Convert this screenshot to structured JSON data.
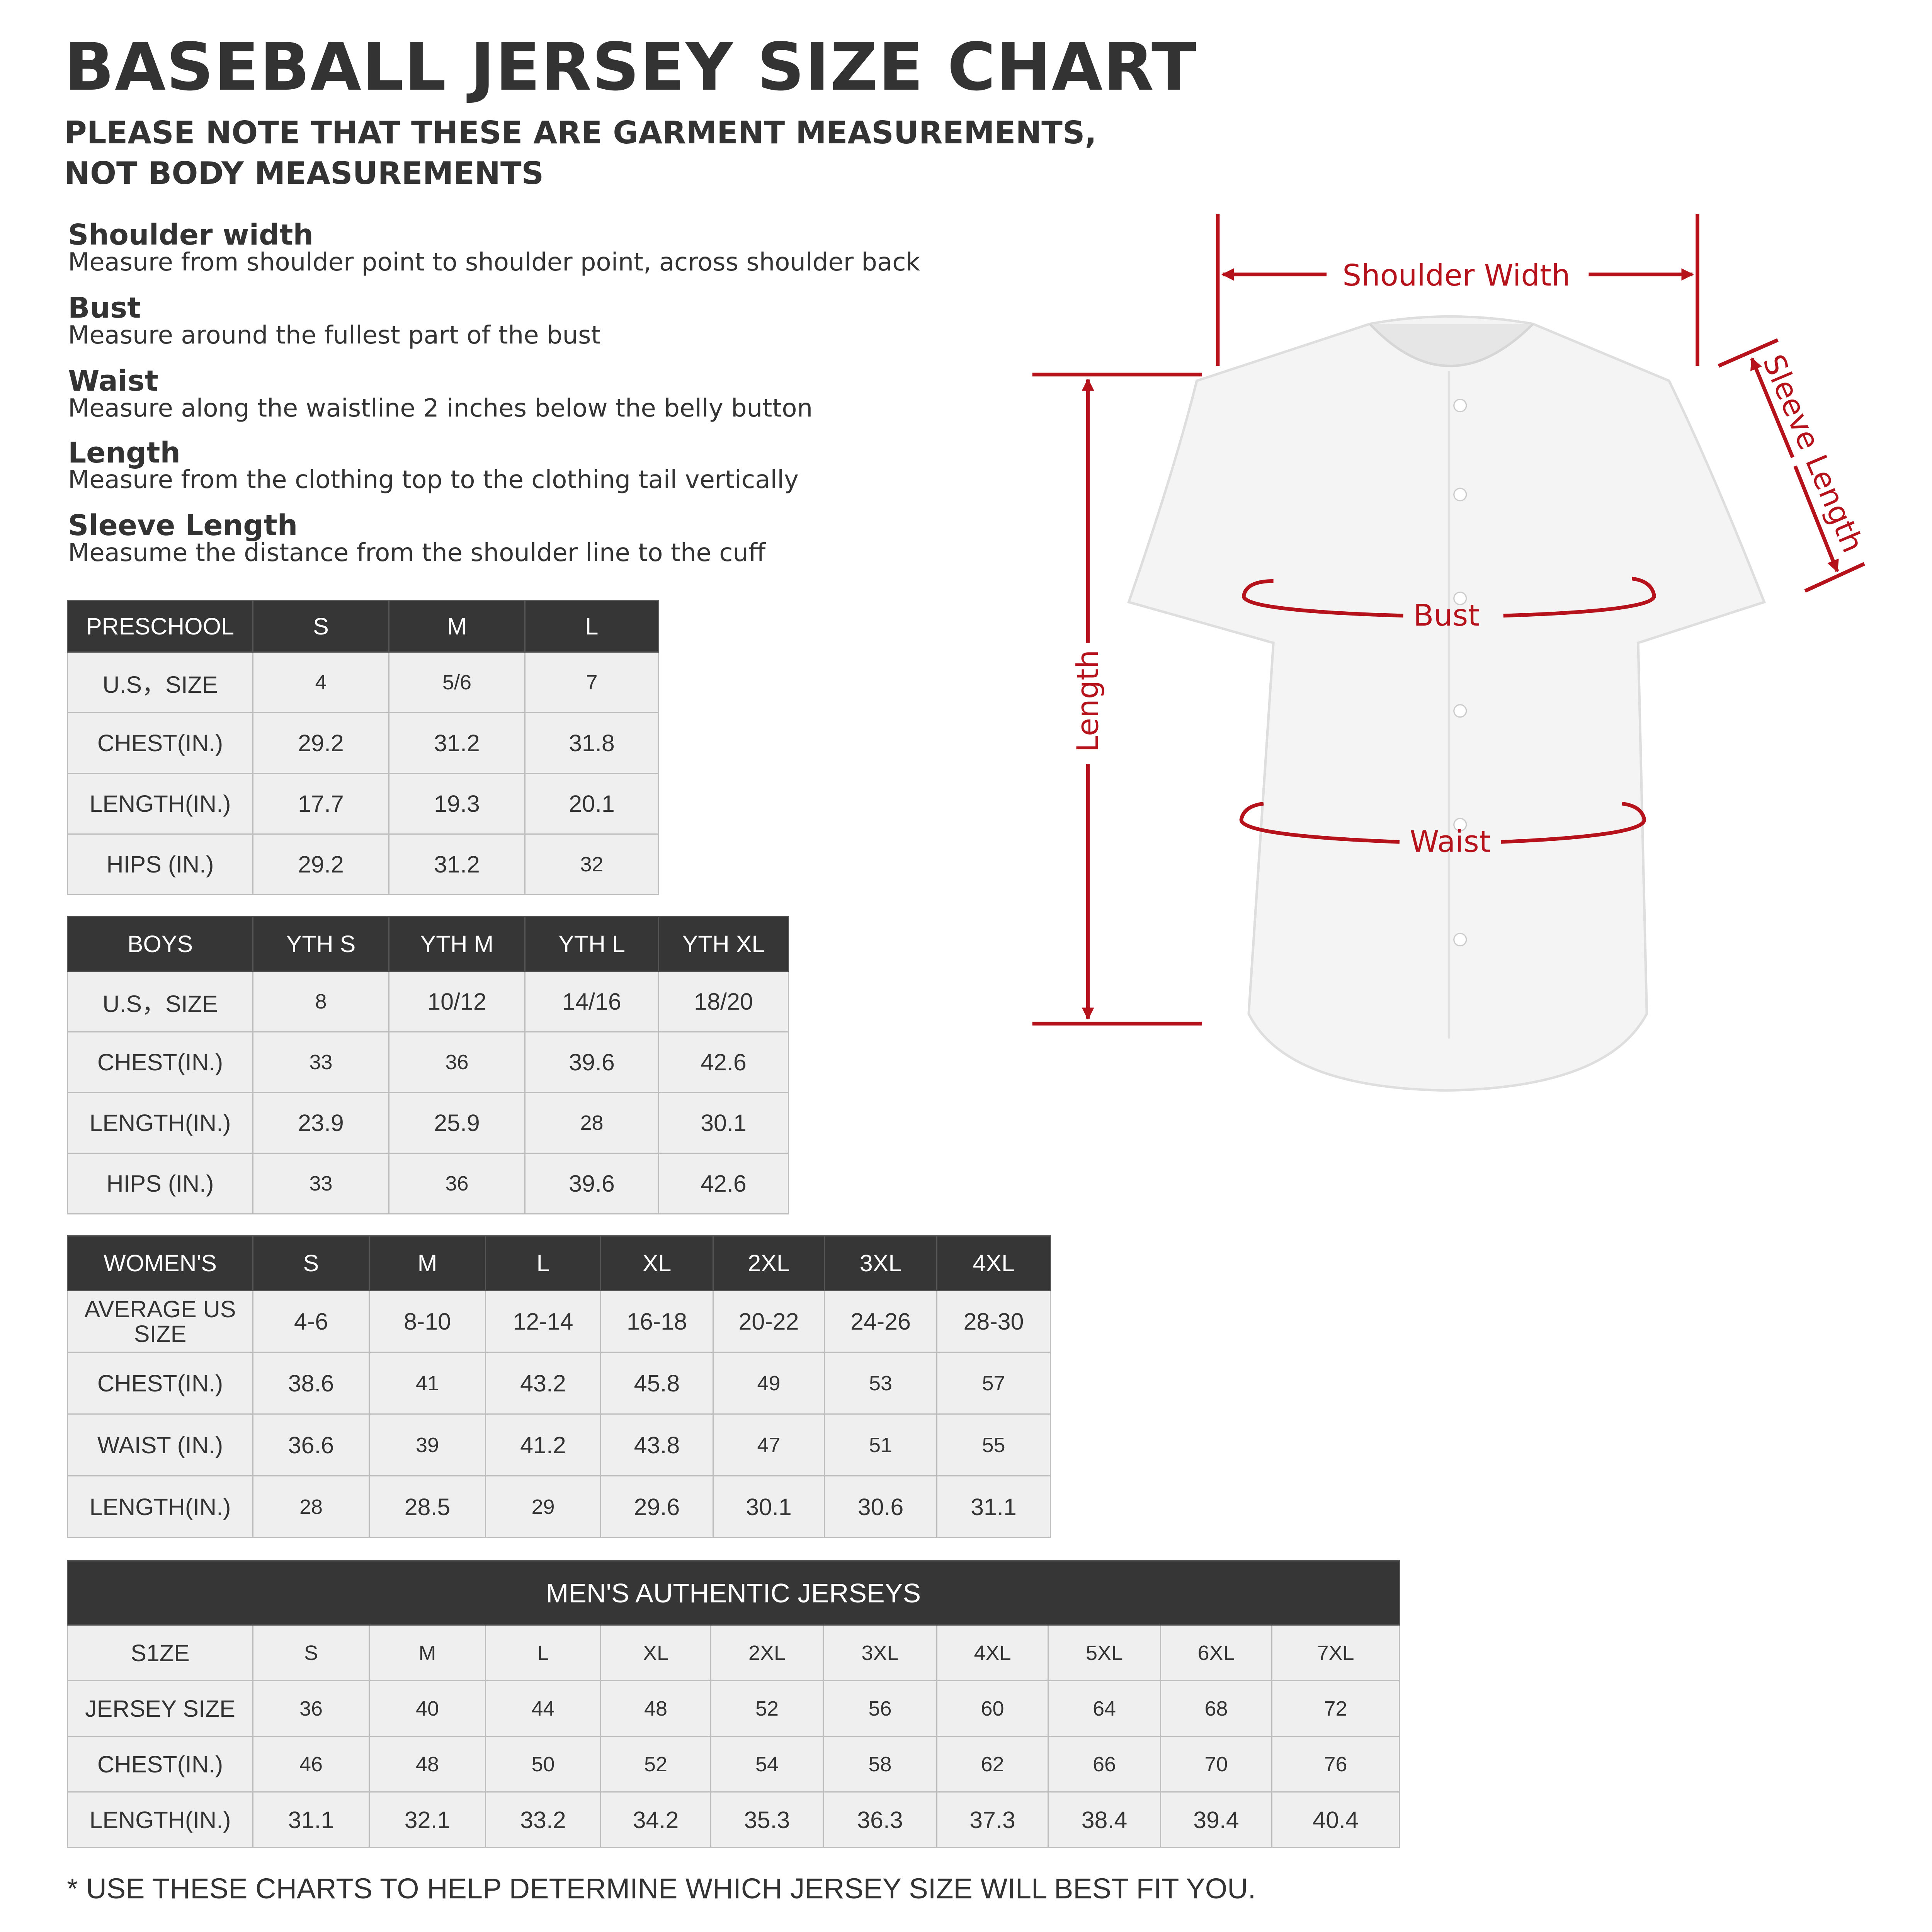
{
  "title": "BASEBALL JERSEY SIZE CHART",
  "subtitle_lines": [
    "PLEASE NOTE THAT THESE ARE GARMENT MEASUREMENTS,",
    "NOT BODY MEASUREMENTS"
  ],
  "definitions": [
    {
      "label": "Shoulder width",
      "desc": "Measure from shoulder point to shoulder point, across shoulder back"
    },
    {
      "label": "Bust",
      "desc": "Measure around the fullest part of the bust"
    },
    {
      "label": "Waist",
      "desc": "Measure along the waistline 2 inches below the belly button"
    },
    {
      "label": "Length",
      "desc": "Measure from the clothing top to the clothing tail vertically"
    },
    {
      "label": "Sleeve Length",
      "desc": "Measume the distance from the shoulder line to the cuff"
    }
  ],
  "preschool": {
    "header": [
      "PRESCHOOL",
      "S",
      "M",
      "L"
    ],
    "rows": [
      [
        "U.S，SIZE",
        "4",
        "5/6",
        "7"
      ],
      [
        "CHEST(IN.)",
        "29.2",
        "31.2",
        "31.8"
      ],
      [
        "LENGTH(IN.)",
        "17.7",
        "19.3",
        "20.1"
      ],
      [
        "HIPS (IN.)",
        "29.2",
        "31.2",
        "32"
      ]
    ]
  },
  "boys": {
    "header": [
      "BOYS",
      "YTH S",
      "YTH M",
      "YTH L",
      "YTH XL"
    ],
    "rows": [
      [
        "U.S，SIZE",
        "8",
        "10/12",
        "14/16",
        "18/20"
      ],
      [
        "CHEST(IN.)",
        "33",
        "36",
        "39.6",
        "42.6"
      ],
      [
        "LENGTH(IN.)",
        "23.9",
        "25.9",
        "28",
        "30.1"
      ],
      [
        "HIPS (IN.)",
        "33",
        "36",
        "39.6",
        "42.6"
      ]
    ]
  },
  "womens": {
    "header": [
      "WOMEN'S",
      "S",
      "M",
      "L",
      "XL",
      "2XL",
      "3XL",
      "4XL"
    ],
    "rows": [
      [
        "AVERAGE US SIZE",
        "4-6",
        "8-10",
        "12-14",
        "16-18",
        "20-22",
        "24-26",
        "28-30"
      ],
      [
        "CHEST(IN.)",
        "38.6",
        "41",
        "43.2",
        "45.8",
        "49",
        "53",
        "57"
      ],
      [
        "WAIST (IN.)",
        "36.6",
        "39",
        "41.2",
        "43.8",
        "47",
        "51",
        "55"
      ],
      [
        "LENGTH(IN.)",
        "28",
        "28.5",
        "29",
        "29.6",
        "30.1",
        "30.6",
        "31.1"
      ]
    ]
  },
  "mens": {
    "title": "MEN'S AUTHENTIC JERSEYS",
    "rows": [
      [
        "S1ZE",
        "S",
        "M",
        "L",
        "XL",
        "2XL",
        "3XL",
        "4XL",
        "5XL",
        "6XL",
        "7XL"
      ],
      [
        "JERSEY SIZE",
        "36",
        "40",
        "44",
        "48",
        "52",
        "56",
        "60",
        "64",
        "68",
        "72"
      ],
      [
        "CHEST(IN.)",
        "46",
        "48",
        "50",
        "52",
        "54",
        "58",
        "62",
        "66",
        "70",
        "76"
      ],
      [
        "LENGTH(IN.)",
        "31.1",
        "32.1",
        "33.2",
        "34.2",
        "35.3",
        "36.3",
        "37.3",
        "38.4",
        "39.4",
        "40.4"
      ]
    ]
  },
  "footer": "* USE THESE CHARTS TO HELP DETERMINE WHICH JERSEY SIZE WILL BEST FIT YOU.",
  "diagram": {
    "shoulder_width": "Shoulder Width",
    "sleeve_length": "Sleeve Length",
    "length": "Length",
    "bust": "Bust",
    "waist": "Waist",
    "accent_color": "#b5121b",
    "header_color": "#363636",
    "cell_color": "#efefef"
  }
}
